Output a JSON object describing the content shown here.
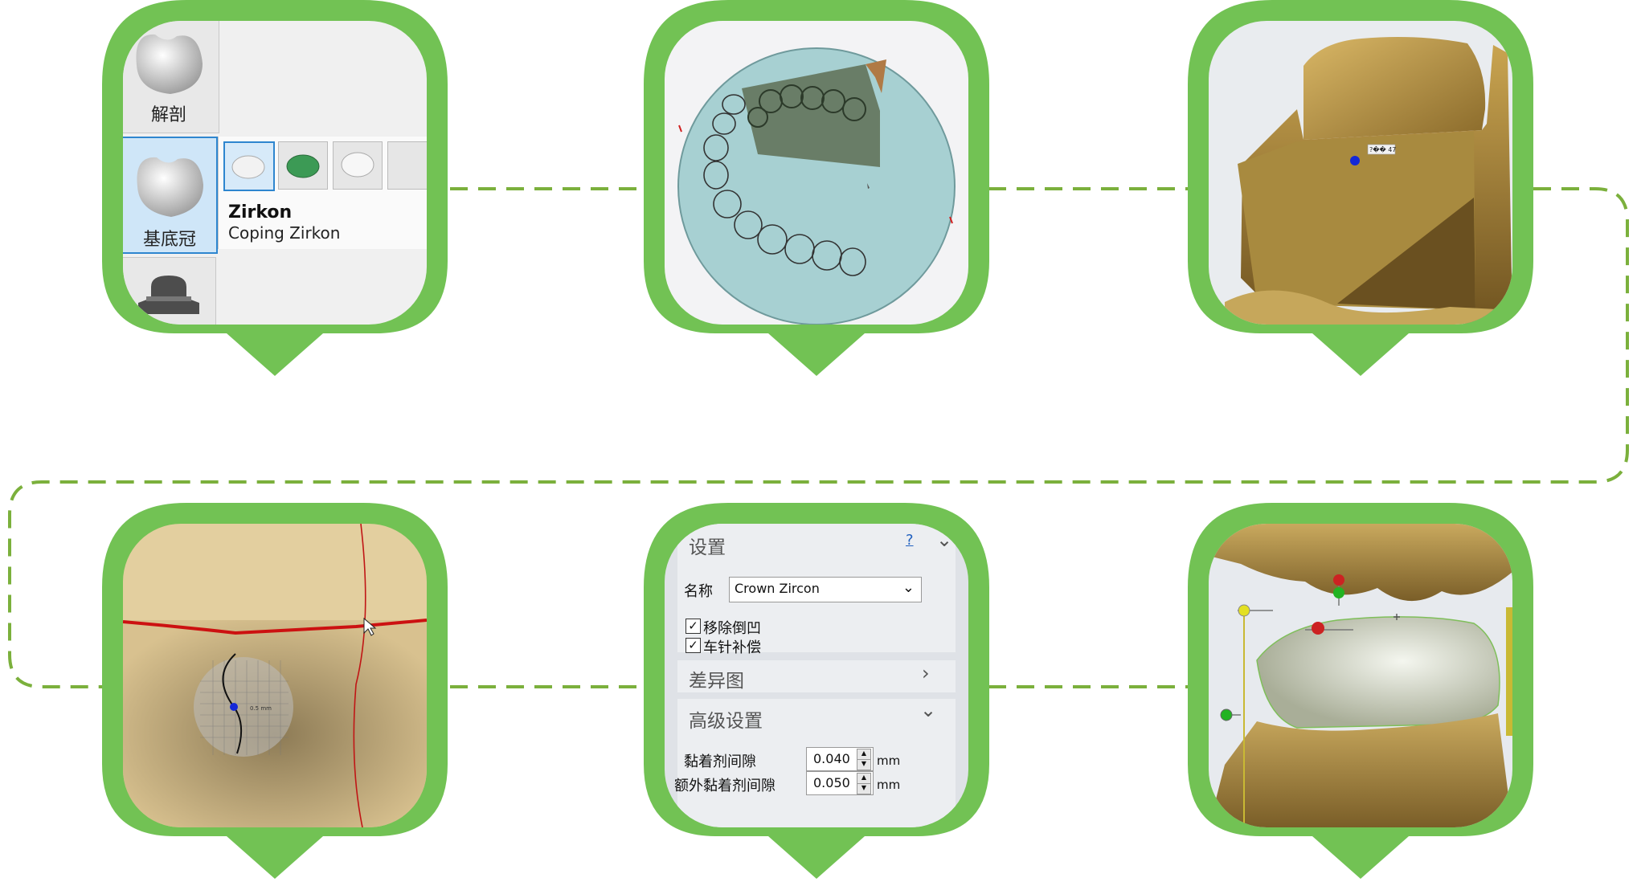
{
  "colors": {
    "frame_green": "#72c254",
    "connector_green": "#7bb03c",
    "selection_blue": "#2e86cf"
  },
  "step1": {
    "tile_anatomy_label": "解剖",
    "tile_coping_label": "基底冠",
    "material_title": "Zirkon",
    "material_subtitle": "Coping Zirkon"
  },
  "step3": {
    "marker_label": "?�� 47"
  },
  "step4": {
    "grid_label": "0.5 mm"
  },
  "step5": {
    "settings_title": "设置",
    "help_label": "?",
    "name_label": "名称",
    "name_value": "Crown Zircon",
    "option_remove_undercut": "移除倒凹",
    "option_drill_compensation": "车针补偿",
    "diff_map_title": "差异图",
    "advanced_title": "高级设置",
    "cement_gap_label": "黏着剂间隙",
    "cement_gap_value": "0.040",
    "extra_cement_gap_label": "额外黏着剂间隙",
    "extra_cement_gap_value": "0.050",
    "unit": "mm"
  }
}
